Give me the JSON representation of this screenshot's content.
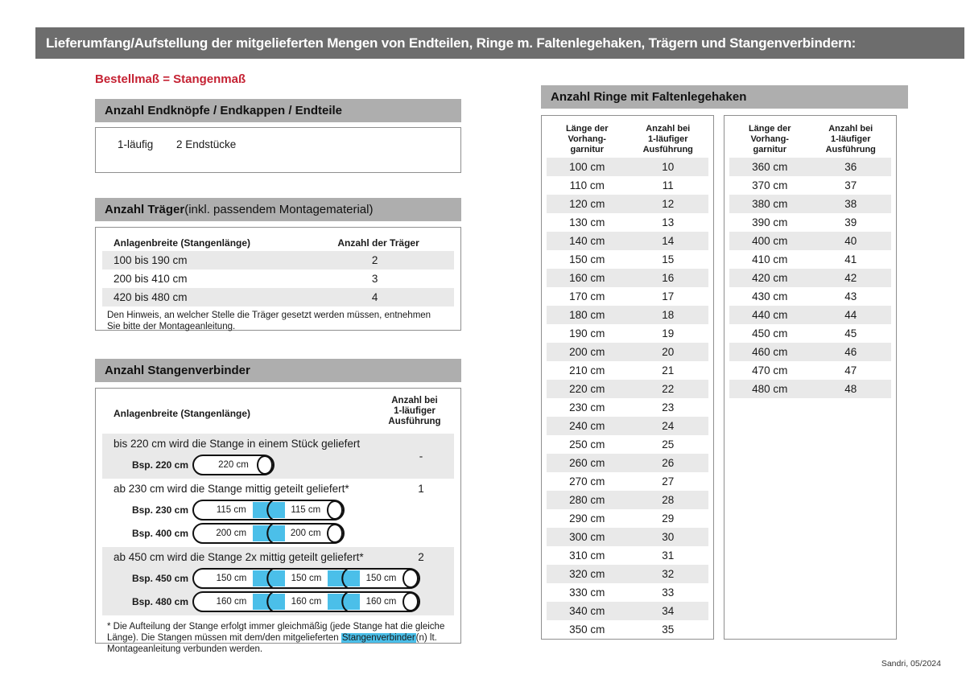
{
  "page": {
    "title": "Lieferumfang/Aufstellung der mitgelieferten Mengen von Endteilen, Ringe m. Faltenlegehaken, Trägern und Stangenverbindern:",
    "footer": "Sandri, 05/2024",
    "colors": {
      "title_bar": "#6d6d6d",
      "section_header": "#aeaeae",
      "row_stripe": "#e9e9e9",
      "accent_red": "#c52233",
      "connector_blue": "#4bbfe9"
    }
  },
  "order_note": "Bestellmaß = Stangenmaß",
  "end_pieces": {
    "header": "Anzahl Endknöpfe / Endkappen / Endteile",
    "type": "1-läufig",
    "value": "2 Endstücke"
  },
  "traeger": {
    "header_bold": "Anzahl Träger",
    "header_rest": " (inkl. passendem Montagematerial)",
    "col1": "Anlagenbreite (Stangenlänge)",
    "col2": "Anzahl der Träger",
    "rows": [
      {
        "range": "100 bis 190 cm",
        "count": "2"
      },
      {
        "range": "200 bis 410 cm",
        "count": "3"
      },
      {
        "range": "420 bis 480 cm",
        "count": "4"
      }
    ],
    "note": "Den Hinweis, an welcher Stelle die Träger gesetzt werden müssen, entnehmen Sie bitte der Montageanleitung."
  },
  "verbinder": {
    "header": "Anzahl Stangenverbinder",
    "col1": "Anlagenbreite (Stangenlänge)",
    "col2_lines": [
      "Anzahl bei",
      "1-läufiger",
      "Ausführung"
    ],
    "rows": [
      {
        "text": "bis 220 cm wird die Stange in einem Stück geliefert",
        "count": "-",
        "examples": [
          {
            "label": "Bsp. 220 cm",
            "segments": [
              "220 cm"
            ]
          }
        ]
      },
      {
        "text": "ab 230 cm wird die Stange mittig geteilt geliefert*",
        "count": "1",
        "examples": [
          {
            "label": "Bsp. 230 cm",
            "segments": [
              "115 cm",
              "115 cm"
            ]
          },
          {
            "label": "Bsp. 400 cm",
            "segments": [
              "200 cm",
              "200 cm"
            ]
          }
        ]
      },
      {
        "text": "ab 450 cm wird die Stange 2x mittig geteilt geliefert*",
        "count": "2",
        "examples": [
          {
            "label": "Bsp. 450 cm",
            "segments": [
              "150 cm",
              "150 cm",
              "150 cm"
            ]
          },
          {
            "label": "Bsp. 480 cm",
            "segments": [
              "160 cm",
              "160 cm",
              "160 cm"
            ]
          }
        ]
      }
    ],
    "footnote_pre": "* Die Aufteilung der Stange erfolgt immer gleichmäßig (jede Stange hat die gleiche Länge). Die Stangen müssen mit dem/den mitgelieferten ",
    "footnote_highlight": "Stangenverbinder",
    "footnote_post": "(n) lt. Montageanleitung verbunden werden."
  },
  "ringe": {
    "header": "Anzahl Ringe mit Faltenlegehaken",
    "col1_lines": [
      "Länge der",
      "Vorhang-",
      "garnitur"
    ],
    "col2_lines": [
      "Anzahl bei",
      "1-läufiger",
      "Ausführung"
    ],
    "table1": [
      {
        "length": "100 cm",
        "count": "10"
      },
      {
        "length": "110 cm",
        "count": "11"
      },
      {
        "length": "120 cm",
        "count": "12"
      },
      {
        "length": "130 cm",
        "count": "13"
      },
      {
        "length": "140 cm",
        "count": "14"
      },
      {
        "length": "150 cm",
        "count": "15"
      },
      {
        "length": "160 cm",
        "count": "16"
      },
      {
        "length": "170 cm",
        "count": "17"
      },
      {
        "length": "180 cm",
        "count": "18"
      },
      {
        "length": "190 cm",
        "count": "19"
      },
      {
        "length": "200 cm",
        "count": "20"
      },
      {
        "length": "210 cm",
        "count": "21"
      },
      {
        "length": "220 cm",
        "count": "22"
      },
      {
        "length": "230 cm",
        "count": "23"
      },
      {
        "length": "240 cm",
        "count": "24"
      },
      {
        "length": "250 cm",
        "count": "25"
      },
      {
        "length": "260 cm",
        "count": "26"
      },
      {
        "length": "270 cm",
        "count": "27"
      },
      {
        "length": "280 cm",
        "count": "28"
      },
      {
        "length": "290 cm",
        "count": "29"
      },
      {
        "length": "300 cm",
        "count": "30"
      },
      {
        "length": "310 cm",
        "count": "31"
      },
      {
        "length": "320 cm",
        "count": "32"
      },
      {
        "length": "330 cm",
        "count": "33"
      },
      {
        "length": "340 cm",
        "count": "34"
      },
      {
        "length": "350 cm",
        "count": "35"
      }
    ],
    "table2": [
      {
        "length": "360 cm",
        "count": "36"
      },
      {
        "length": "370 cm",
        "count": "37"
      },
      {
        "length": "380 cm",
        "count": "38"
      },
      {
        "length": "390 cm",
        "count": "39"
      },
      {
        "length": "400 cm",
        "count": "40"
      },
      {
        "length": "410 cm",
        "count": "41"
      },
      {
        "length": "420 cm",
        "count": "42"
      },
      {
        "length": "430 cm",
        "count": "43"
      },
      {
        "length": "440 cm",
        "count": "44"
      },
      {
        "length": "450 cm",
        "count": "45"
      },
      {
        "length": "460 cm",
        "count": "46"
      },
      {
        "length": "470 cm",
        "count": "47"
      },
      {
        "length": "480 cm",
        "count": "48"
      }
    ]
  }
}
